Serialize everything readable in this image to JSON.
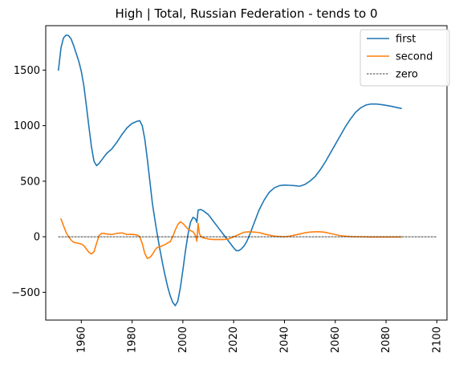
{
  "chart_data": {
    "type": "line",
    "title": "High | Total, Russian Federation  - tends to 0",
    "xlabel": "",
    "ylabel": "",
    "xlim": [
      1946,
      2104
    ],
    "ylim": [
      -750,
      1900
    ],
    "x_ticks": [
      1960,
      1980,
      2000,
      2020,
      2040,
      2060,
      2080,
      2100
    ],
    "y_ticks": [
      -500,
      0,
      500,
      1000,
      1500
    ],
    "x_tick_labels": [
      "1960",
      "1980",
      "2000",
      "2020",
      "2040",
      "2060",
      "2080",
      "2100"
    ],
    "y_tick_labels": [
      "−500",
      "0",
      "500",
      "1000",
      "1500"
    ],
    "legend_position": "upper right",
    "grid": false,
    "series": [
      {
        "name": "first",
        "color": "#1f77b4",
        "points": [
          [
            1951,
            1500
          ],
          [
            1952,
            1700
          ],
          [
            1953,
            1790
          ],
          [
            1954,
            1815
          ],
          [
            1955,
            1810
          ],
          [
            1956,
            1780
          ],
          [
            1957,
            1720
          ],
          [
            1958,
            1650
          ],
          [
            1959,
            1580
          ],
          [
            1960,
            1490
          ],
          [
            1961,
            1360
          ],
          [
            1962,
            1180
          ],
          [
            1963,
            990
          ],
          [
            1964,
            810
          ],
          [
            1965,
            680
          ],
          [
            1966,
            640
          ],
          [
            1967,
            660
          ],
          [
            1968,
            690
          ],
          [
            1969,
            720
          ],
          [
            1970,
            750
          ],
          [
            1972,
            790
          ],
          [
            1974,
            850
          ],
          [
            1976,
            920
          ],
          [
            1978,
            980
          ],
          [
            1980,
            1020
          ],
          [
            1982,
            1040
          ],
          [
            1983,
            1045
          ],
          [
            1984,
            1000
          ],
          [
            1985,
            880
          ],
          [
            1986,
            700
          ],
          [
            1987,
            500
          ],
          [
            1988,
            300
          ],
          [
            1989,
            150
          ],
          [
            1990,
            10
          ],
          [
            1991,
            -120
          ],
          [
            1992,
            -240
          ],
          [
            1993,
            -350
          ],
          [
            1994,
            -450
          ],
          [
            1995,
            -530
          ],
          [
            1996,
            -590
          ],
          [
            1997,
            -620
          ],
          [
            1998,
            -580
          ],
          [
            1999,
            -460
          ],
          [
            2000,
            -300
          ],
          [
            2001,
            -130
          ],
          [
            2002,
            20
          ],
          [
            2003,
            130
          ],
          [
            2004,
            175
          ],
          [
            2005,
            160
          ],
          [
            2005.5,
            130
          ],
          [
            2006,
            240
          ],
          [
            2007,
            245
          ],
          [
            2008,
            235
          ],
          [
            2010,
            200
          ],
          [
            2012,
            140
          ],
          [
            2014,
            80
          ],
          [
            2016,
            20
          ],
          [
            2018,
            -40
          ],
          [
            2020,
            -100
          ],
          [
            2021,
            -125
          ],
          [
            2022,
            -125
          ],
          [
            2023,
            -110
          ],
          [
            2024,
            -85
          ],
          [
            2025,
            -50
          ],
          [
            2026,
            0
          ],
          [
            2027,
            60
          ],
          [
            2028,
            120
          ],
          [
            2029,
            180
          ],
          [
            2030,
            240
          ],
          [
            2032,
            330
          ],
          [
            2034,
            400
          ],
          [
            2036,
            440
          ],
          [
            2038,
            460
          ],
          [
            2040,
            465
          ],
          [
            2042,
            463
          ],
          [
            2044,
            460
          ],
          [
            2046,
            455
          ],
          [
            2048,
            470
          ],
          [
            2050,
            500
          ],
          [
            2052,
            540
          ],
          [
            2054,
            600
          ],
          [
            2056,
            670
          ],
          [
            2058,
            750
          ],
          [
            2060,
            830
          ],
          [
            2062,
            910
          ],
          [
            2064,
            990
          ],
          [
            2066,
            1060
          ],
          [
            2068,
            1120
          ],
          [
            2070,
            1160
          ],
          [
            2072,
            1185
          ],
          [
            2074,
            1195
          ],
          [
            2076,
            1195
          ],
          [
            2078,
            1190
          ],
          [
            2080,
            1183
          ],
          [
            2082,
            1175
          ],
          [
            2084,
            1165
          ],
          [
            2086,
            1155
          ]
        ]
      },
      {
        "name": "second",
        "color": "#ff7f0e",
        "points": [
          [
            1952,
            160
          ],
          [
            1953,
            100
          ],
          [
            1954,
            40
          ],
          [
            1955,
            0
          ],
          [
            1956,
            -30
          ],
          [
            1957,
            -50
          ],
          [
            1958,
            -55
          ],
          [
            1959,
            -60
          ],
          [
            1960,
            -65
          ],
          [
            1961,
            -80
          ],
          [
            1962,
            -110
          ],
          [
            1963,
            -140
          ],
          [
            1964,
            -155
          ],
          [
            1965,
            -135
          ],
          [
            1966,
            -60
          ],
          [
            1967,
            10
          ],
          [
            1968,
            30
          ],
          [
            1969,
            30
          ],
          [
            1970,
            25
          ],
          [
            1972,
            20
          ],
          [
            1974,
            30
          ],
          [
            1976,
            35
          ],
          [
            1977,
            28
          ],
          [
            1978,
            20
          ],
          [
            1980,
            22
          ],
          [
            1982,
            15
          ],
          [
            1983,
            0
          ],
          [
            1984,
            -60
          ],
          [
            1985,
            -150
          ],
          [
            1986,
            -195
          ],
          [
            1987,
            -185
          ],
          [
            1988,
            -160
          ],
          [
            1989,
            -120
          ],
          [
            1990,
            -95
          ],
          [
            1991,
            -90
          ],
          [
            1992,
            -80
          ],
          [
            1993,
            -70
          ],
          [
            1994,
            -55
          ],
          [
            1995,
            -45
          ],
          [
            1996,
            0
          ],
          [
            1997,
            60
          ],
          [
            1998,
            110
          ],
          [
            1999,
            135
          ],
          [
            2000,
            120
          ],
          [
            2001,
            95
          ],
          [
            2002,
            70
          ],
          [
            2003,
            55
          ],
          [
            2004,
            45
          ],
          [
            2005,
            10
          ],
          [
            2005.5,
            -40
          ],
          [
            2006,
            120
          ],
          [
            2006.5,
            30
          ],
          [
            2007,
            5
          ],
          [
            2008,
            -10
          ],
          [
            2010,
            -20
          ],
          [
            2012,
            -25
          ],
          [
            2014,
            -25
          ],
          [
            2016,
            -25
          ],
          [
            2018,
            -20
          ],
          [
            2020,
            0
          ],
          [
            2022,
            20
          ],
          [
            2024,
            40
          ],
          [
            2026,
            45
          ],
          [
            2028,
            42
          ],
          [
            2030,
            38
          ],
          [
            2032,
            25
          ],
          [
            2034,
            15
          ],
          [
            2036,
            5
          ],
          [
            2038,
            2
          ],
          [
            2040,
            0
          ],
          [
            2042,
            5
          ],
          [
            2044,
            15
          ],
          [
            2046,
            25
          ],
          [
            2048,
            35
          ],
          [
            2050,
            42
          ],
          [
            2052,
            45
          ],
          [
            2054,
            45
          ],
          [
            2056,
            40
          ],
          [
            2058,
            30
          ],
          [
            2060,
            20
          ],
          [
            2062,
            10
          ],
          [
            2064,
            5
          ],
          [
            2066,
            2
          ],
          [
            2068,
            0
          ],
          [
            2070,
            0
          ],
          [
            2074,
            -2
          ],
          [
            2078,
            -2
          ],
          [
            2082,
            -2
          ],
          [
            2086,
            -2
          ]
        ]
      },
      {
        "name": "zero",
        "color": "#000000",
        "dashed": true,
        "points": [
          [
            1951,
            0
          ],
          [
            2100,
            0
          ]
        ]
      }
    ]
  }
}
